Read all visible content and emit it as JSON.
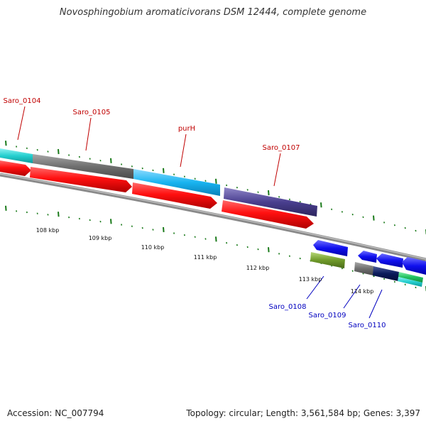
{
  "title": "Novosphingobium aromaticivorans DSM 12444, complete genome",
  "footer": {
    "accession": "Accession: NC_007794",
    "summary": "Topology: circular; Length: 3,561,584 bp; Genes: 3,397"
  },
  "colors": {
    "label_red": "#c00000",
    "label_blue": "#0000c0",
    "tick_green": "#1a7a1a",
    "backbone": "#8a8a8a"
  },
  "scale_labels": [
    {
      "label": "108 kbp"
    },
    {
      "label": "109 kbp"
    },
    {
      "label": "110 kbp"
    },
    {
      "label": "111 kbp"
    },
    {
      "label": "112 kbp"
    },
    {
      "label": "113 kbp"
    },
    {
      "label": "114 kbp"
    }
  ],
  "gene_labels": [
    {
      "name": "Saro_0104",
      "strand": "forward"
    },
    {
      "name": "Saro_0105",
      "strand": "forward"
    },
    {
      "name": "purH",
      "strand": "forward"
    },
    {
      "name": "Saro_0107",
      "strand": "forward"
    },
    {
      "name": "Saro_0108",
      "strand": "reverse"
    },
    {
      "name": "Saro_0109",
      "strand": "reverse"
    },
    {
      "name": "Saro_0110",
      "strand": "reverse"
    }
  ]
}
